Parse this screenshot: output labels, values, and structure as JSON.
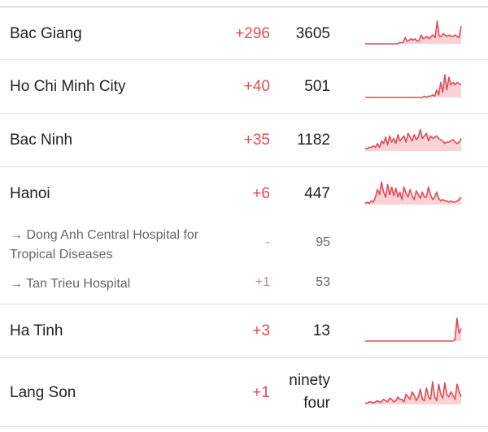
{
  "colors": {
    "accent": "#e04b57",
    "spark_fill": "#fbd3d6"
  },
  "rows": [
    {
      "name": "Bac Giang",
      "delta": "+296",
      "total": "3605",
      "spark": [
        0,
        0,
        0,
        0,
        0,
        0,
        0,
        0,
        0,
        0,
        0,
        0,
        0,
        0,
        0,
        0,
        0,
        0.05,
        0.05,
        0.05,
        0.25,
        0.1,
        0.15,
        0.2,
        0.15,
        0.2,
        0.1,
        0.15,
        0.35,
        0.2,
        0.25,
        0.3,
        0.2,
        0.3,
        0.35,
        0.25,
        0.9,
        0.3,
        0.3,
        0.4,
        0.35,
        0.3,
        0.35,
        0.3,
        0.3,
        0.35,
        0.3,
        0.25,
        0.7
      ]
    },
    {
      "name": "Ho Chi Minh City",
      "delta": "+40",
      "total": "501",
      "spark": [
        0,
        0,
        0,
        0,
        0,
        0,
        0,
        0,
        0,
        0,
        0,
        0,
        0,
        0,
        0,
        0,
        0,
        0,
        0,
        0,
        0,
        0,
        0,
        0,
        0,
        0,
        0,
        0,
        0,
        0.05,
        0,
        0.05,
        0.05,
        0.1,
        0.05,
        0.3,
        0.1,
        0.6,
        0.2,
        0.9,
        0.3,
        0.8,
        0.5,
        0.6,
        0.5,
        0.6,
        0.55,
        0.5
      ]
    },
    {
      "name": "Bac Ninh",
      "delta": "+35",
      "total": "1182",
      "spark": [
        0.1,
        0.1,
        0.15,
        0.15,
        0.2,
        0.15,
        0.3,
        0.15,
        0.4,
        0.3,
        0.55,
        0.25,
        0.6,
        0.35,
        0.5,
        0.3,
        0.65,
        0.4,
        0.5,
        0.6,
        0.35,
        0.7,
        0.55,
        0.4,
        0.65,
        0.45,
        0.55,
        0.85,
        0.5,
        0.6,
        0.7,
        0.4,
        0.6,
        0.5,
        0.55,
        0.6,
        0.5,
        0.45,
        0.4,
        0.3,
        0.35,
        0.35,
        0.4,
        0.45,
        0.35,
        0.3,
        0.35,
        0.5
      ]
    },
    {
      "name": "Hanoi",
      "delta": "+6",
      "total": "447",
      "spark": [
        0.05,
        0.1,
        0.05,
        0.15,
        0.1,
        0.3,
        0.6,
        0.4,
        0.9,
        0.5,
        0.3,
        0.8,
        0.4,
        0.7,
        0.35,
        0.65,
        0.3,
        0.5,
        0.2,
        0.7,
        0.45,
        0.3,
        0.6,
        0.35,
        0.2,
        0.55,
        0.4,
        0.25,
        0.5,
        0.3,
        0.3,
        0.7,
        0.4,
        0.2,
        0.3,
        0.5,
        0.25,
        0.15,
        0.2,
        0.15,
        0.15,
        0.1,
        0.15,
        0.1,
        0.1,
        0.15,
        0.2,
        0.3
      ]
    },
    {
      "name": "→ Dong Anh Central Hospital for Tropical Diseases",
      "delta": "-",
      "total": "95"
    },
    {
      "name": "→ Tan Trieu Hospital",
      "delta": "+1",
      "total": "53"
    },
    {
      "name": "Ha Tinh",
      "delta": "+3",
      "total": "13",
      "spark": [
        0,
        0,
        0,
        0,
        0,
        0,
        0,
        0,
        0,
        0,
        0,
        0,
        0,
        0,
        0,
        0,
        0,
        0,
        0,
        0,
        0,
        0,
        0,
        0,
        0,
        0,
        0,
        0,
        0,
        0,
        0,
        0,
        0,
        0,
        0,
        0,
        0,
        0,
        0,
        0,
        0,
        0,
        0,
        0.05,
        0.9,
        0.3,
        0.5
      ]
    },
    {
      "name": "Lang Son",
      "delta": "+1",
      "total_lines": [
        "ninety",
        "four"
      ],
      "spark": [
        0.05,
        0.05,
        0.1,
        0.1,
        0.05,
        0.1,
        0.15,
        0.1,
        0.1,
        0.2,
        0.15,
        0.1,
        0.25,
        0.2,
        0.1,
        0.15,
        0.3,
        0.2,
        0.2,
        0.1,
        0.4,
        0.3,
        0.2,
        0.5,
        0.35,
        0.15,
        0.3,
        0.6,
        0.2,
        0.15,
        0.65,
        0.3,
        0.2,
        0.9,
        0.3,
        0.15,
        0.8,
        0.4,
        0.25,
        0.85,
        0.4,
        0.3,
        0.5,
        0.35,
        0.2,
        0.8,
        0.5,
        0.3
      ]
    }
  ]
}
